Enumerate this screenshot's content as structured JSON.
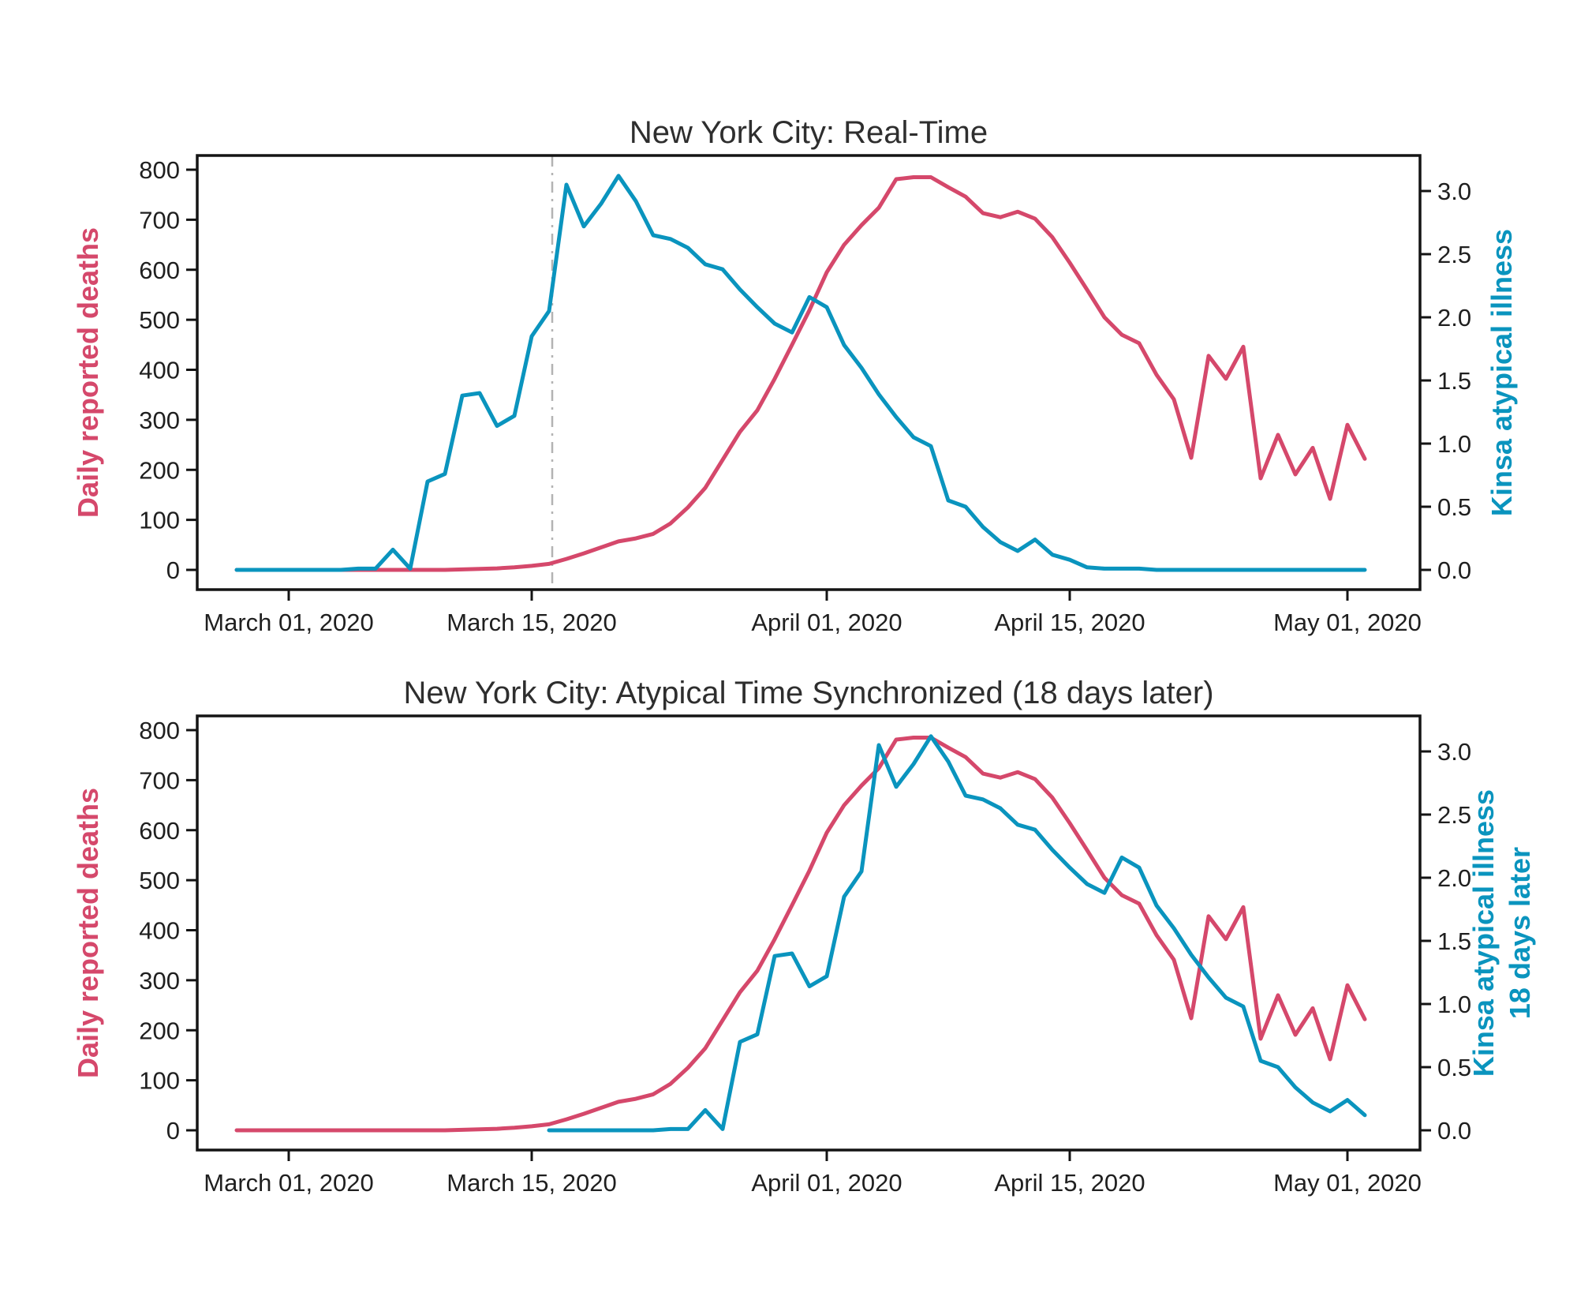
{
  "colors": {
    "deaths_line": "#d5486b",
    "kinsa_line": "#0a94be",
    "annotation_line": "#b3b3b3",
    "axis": "#141414",
    "tick_text": "#1f1f1f",
    "title_text": "#2e2e2e",
    "background": "#ffffff"
  },
  "chart_data": [
    {
      "type": "line",
      "title": "New York City: Real-Time",
      "ylabel_left": "Daily reported deaths",
      "ylabel_right_lines": [
        "Kinsa atypical illness"
      ],
      "grid": false,
      "legend": "none",
      "ylim_left": [
        0,
        800
      ],
      "ylim_right": [
        0.0,
        3.0
      ],
      "y_ticks_left": [
        "0",
        "100",
        "200",
        "300",
        "400",
        "500",
        "600",
        "700",
        "800"
      ],
      "y_ticks_right": [
        "0.0",
        "0.5",
        "1.0",
        "1.5",
        "2.0",
        "2.5",
        "3.0"
      ],
      "x_ticks": [
        {
          "date": "2020-03-01",
          "label": "March 01, 2020"
        },
        {
          "date": "2020-03-15",
          "label": "March 15, 2020"
        },
        {
          "date": "2020-04-01",
          "label": "April 01, 2020"
        },
        {
          "date": "2020-04-15",
          "label": "April 15, 2020"
        },
        {
          "date": "2020-05-01",
          "label": "May 01, 2020"
        }
      ],
      "annotation_vline": {
        "date": "2020-03-16",
        "style": "dash-dot",
        "color_key": "annotation_line"
      },
      "series": [
        {
          "name": "Daily reported deaths",
          "axis": "left",
          "color_key": "deaths_line",
          "start_date": "2020-02-27",
          "freq_days": 1,
          "values": [
            0,
            0,
            0,
            0,
            0,
            0,
            0,
            0,
            0,
            0,
            0,
            0,
            0,
            1,
            2,
            3,
            5,
            8,
            12,
            22,
            33,
            45,
            57,
            63,
            72,
            93,
            125,
            164,
            220,
            276,
            319,
            382,
            450,
            519,
            595,
            650,
            689,
            724,
            781,
            785,
            785,
            765,
            746,
            713,
            705,
            716,
            702,
            665,
            614,
            560,
            505,
            470,
            453,
            390,
            341,
            224,
            428,
            382,
            446,
            183,
            270,
            191,
            244,
            142,
            290,
            222
          ]
        },
        {
          "name": "Kinsa atypical illness",
          "axis": "right",
          "color_key": "kinsa_line",
          "start_date": "2020-02-27",
          "freq_days": 1,
          "values": [
            0,
            0,
            0,
            0,
            0,
            0,
            0,
            0.01,
            0.01,
            0.16,
            0.01,
            0.7,
            0.76,
            1.38,
            1.4,
            1.14,
            1.22,
            1.85,
            2.05,
            3.05,
            2.72,
            2.9,
            3.12,
            2.92,
            2.65,
            2.62,
            2.55,
            2.42,
            2.38,
            2.22,
            2.08,
            1.95,
            1.88,
            2.16,
            2.08,
            1.78,
            1.6,
            1.39,
            1.21,
            1.05,
            0.98,
            0.55,
            0.5,
            0.34,
            0.22,
            0.15,
            0.24,
            0.12,
            0.08,
            0.02,
            0.01,
            0.01,
            0.01,
            0,
            0,
            0,
            0,
            0,
            0,
            0,
            0,
            0,
            0,
            0,
            0,
            0
          ]
        }
      ]
    },
    {
      "type": "line",
      "title": "New York City: Atypical Time Synchronized (18 days later)",
      "ylabel_left": "Daily reported deaths",
      "ylabel_right_lines": [
        "Kinsa atypical illness",
        "18 days later"
      ],
      "grid": false,
      "legend": "none",
      "ylim_left": [
        0,
        800
      ],
      "ylim_right": [
        0.0,
        3.0
      ],
      "y_ticks_left": [
        "0",
        "100",
        "200",
        "300",
        "400",
        "500",
        "600",
        "700",
        "800"
      ],
      "y_ticks_right": [
        "0.0",
        "0.5",
        "1.0",
        "1.5",
        "2.0",
        "2.5",
        "3.0"
      ],
      "x_ticks": [
        {
          "date": "2020-03-01",
          "label": "March 01, 2020"
        },
        {
          "date": "2020-03-15",
          "label": "March 15, 2020"
        },
        {
          "date": "2020-04-01",
          "label": "April 01, 2020"
        },
        {
          "date": "2020-04-15",
          "label": "April 15, 2020"
        },
        {
          "date": "2020-05-01",
          "label": "May 01, 2020"
        }
      ],
      "annotation_vline": null,
      "series": [
        {
          "name": "Daily reported deaths",
          "axis": "left",
          "color_key": "deaths_line",
          "start_date": "2020-02-27",
          "freq_days": 1,
          "values": [
            0,
            0,
            0,
            0,
            0,
            0,
            0,
            0,
            0,
            0,
            0,
            0,
            0,
            1,
            2,
            3,
            5,
            8,
            12,
            22,
            33,
            45,
            57,
            63,
            72,
            93,
            125,
            164,
            220,
            276,
            319,
            382,
            450,
            519,
            595,
            650,
            689,
            724,
            781,
            785,
            785,
            765,
            746,
            713,
            705,
            716,
            702,
            665,
            614,
            560,
            505,
            470,
            453,
            390,
            341,
            224,
            428,
            382,
            446,
            183,
            270,
            191,
            244,
            142,
            290,
            222
          ]
        },
        {
          "name": "Kinsa atypical illness 18 days later",
          "axis": "right",
          "color_key": "kinsa_line",
          "start_date": "2020-03-16",
          "freq_days": 1,
          "shift_days": 18,
          "values": [
            0,
            0,
            0,
            0,
            0,
            0,
            0,
            0.01,
            0.01,
            0.16,
            0.01,
            0.7,
            0.76,
            1.38,
            1.4,
            1.14,
            1.22,
            1.85,
            2.05,
            3.05,
            2.72,
            2.9,
            3.12,
            2.92,
            2.65,
            2.62,
            2.55,
            2.42,
            2.38,
            2.22,
            2.08,
            1.95,
            1.88,
            2.16,
            2.08,
            1.78,
            1.6,
            1.39,
            1.21,
            1.05,
            0.98,
            0.55,
            0.5,
            0.34,
            0.22,
            0.15,
            0.24,
            0.12
          ]
        }
      ]
    }
  ]
}
